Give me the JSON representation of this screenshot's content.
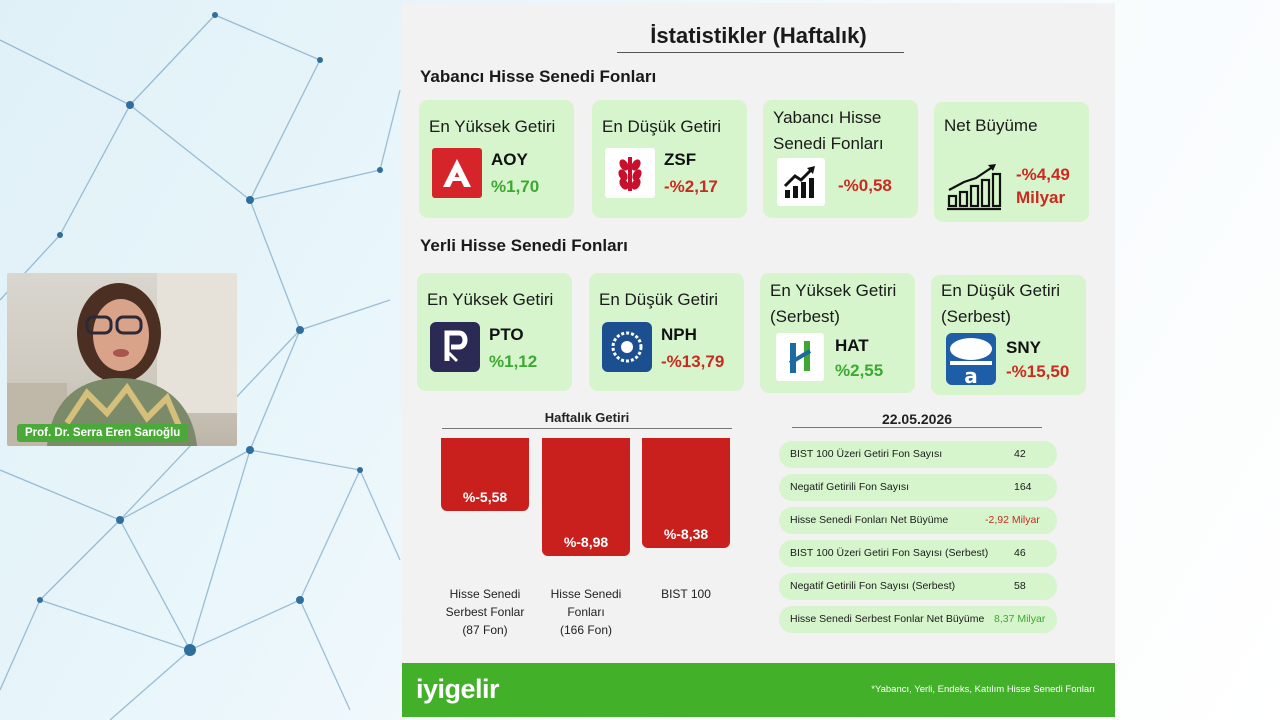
{
  "presenter": {
    "name": "Prof. Dr. Serra Eren Sarıoğlu"
  },
  "slide": {
    "title": "İstatistikler (Haftalık)",
    "foreign_section": {
      "title": "Yabancı Hisse Senedi Fonları",
      "cards": [
        {
          "title": "En Yüksek Getiri",
          "code": "AOY",
          "value": "%1,70",
          "logo": "aoy-logo-icon"
        },
        {
          "title": "En Düşük Getiri",
          "code": "ZSF",
          "value": "-%2,17",
          "logo": "ziraat-wheat-icon"
        },
        {
          "title": "Yabancı Hisse Senedi Fonları",
          "code": "",
          "value": "-%0,58",
          "logo": "growth-chart-icon"
        },
        {
          "title": "Net Büyüme",
          "code": "",
          "value": "-%4,49 Milyar",
          "value_line1": "-%4,49",
          "value_line2": "Milyar",
          "logo": "bar-chart-growth-icon"
        }
      ]
    },
    "domestic_section": {
      "title": "Yerli Hisse Senedi Fonları",
      "cards": [
        {
          "title": "En Yüksek Getiri",
          "code": "PTO",
          "value": "%1,12",
          "logo": "pto-logo-icon"
        },
        {
          "title": "En Düşük Getiri",
          "code": "NPH",
          "value": "-%13,79",
          "logo": "nph-logo-icon"
        },
        {
          "title": "En Yüksek Getiri (Serbest)",
          "title_line1": "En Yüksek Getiri",
          "title_line2": "(Serbest)",
          "code": "HAT",
          "value": "%2,55",
          "logo": "hat-logo-icon"
        },
        {
          "title": "En Düşük Getiri (Serbest)",
          "title_line1": "En Düşük Getiri",
          "title_line2": "(Serbest)",
          "code": "SNY",
          "value": "-%15,50",
          "logo": "sny-logo-icon"
        }
      ]
    },
    "chart_data": {
      "type": "bar",
      "title": "Haftalık Getiri",
      "categories": [
        "Hisse Senedi Serbest Fonlar (87 Fon)",
        "Hisse Senedi Fonları (166 Fon)",
        "BIST 100"
      ],
      "category_lines": [
        [
          "Hisse Senedi",
          "Serbest Fonlar",
          "(87 Fon)"
        ],
        [
          "Hisse Senedi",
          "Fonları",
          "(166 Fon)"
        ],
        [
          "BIST 100"
        ]
      ],
      "values": [
        -5.58,
        -8.98,
        -8.38
      ],
      "labels": [
        "%-5,58",
        "%-8,98",
        "%-8,38"
      ],
      "ylim": [
        -10,
        0
      ],
      "color": "#c9201e"
    },
    "stats": {
      "date": "22.05.2026",
      "rows": [
        {
          "label": "BIST 100 Üzeri Getiri Fon Sayısı",
          "value": "42",
          "tone": "normal"
        },
        {
          "label": "Negatif Getirili Fon Sayısı",
          "value": "164",
          "tone": "normal"
        },
        {
          "label": "Hisse Senedi Fonları Net Büyüme",
          "value": "-2,92 Milyar",
          "tone": "neg"
        },
        {
          "label": "BIST 100 Üzeri Getiri Fon Sayısı (Serbest)",
          "value": "46",
          "tone": "normal"
        },
        {
          "label": "Negatif Getirili Fon Sayısı (Serbest)",
          "value": "58",
          "tone": "normal"
        },
        {
          "label": "Hisse Senedi Serbest Fonlar Net Büyüme",
          "value": "8,37 Milyar",
          "tone": "pos"
        }
      ]
    },
    "footer": {
      "logo": "iyigelir",
      "note": "*Yabancı, Yerli, Endeks, Katılım Hisse Senedi Fonları"
    }
  },
  "colors": {
    "card_bg": "#d6f5cc",
    "positive": "#3ea832",
    "negative": "#cc2a20",
    "footer": "#43b02a"
  }
}
